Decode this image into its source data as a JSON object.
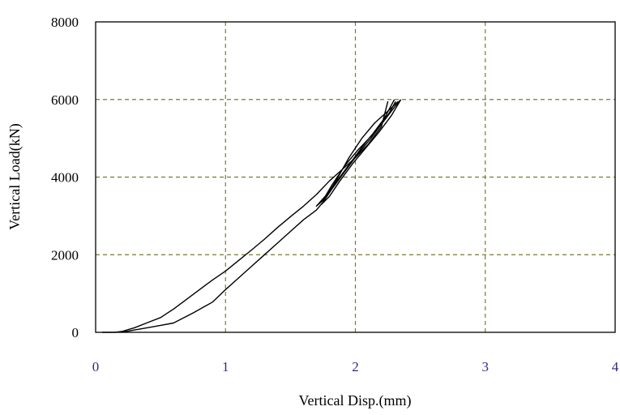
{
  "chart_data": {
    "type": "line",
    "title": "",
    "xlabel": "Vertical Disp.(mm)",
    "ylabel": "Vertical Load(kN)",
    "xlim": [
      0,
      4
    ],
    "ylim": [
      0,
      8000
    ],
    "x_ticks": [
      0,
      1,
      2,
      3,
      4
    ],
    "y_ticks": [
      0,
      2000,
      4000,
      6000,
      8000
    ],
    "x_tick_labels": [
      "0",
      "1",
      "2",
      "3",
      "4"
    ],
    "y_tick_labels": [
      "0",
      "2000",
      "4000",
      "6000",
      "8000"
    ],
    "grid": true,
    "grid_style": "dashed",
    "legend": "none",
    "colors": {
      "curve": "#000000",
      "grid": "#7a7a2e",
      "x_tick_text": "#2d2d80",
      "frame": "#000000"
    },
    "series": [
      {
        "values_xy": [
          [
            0.05,
            0
          ],
          [
            0.15,
            0
          ],
          [
            0.2,
            20
          ],
          [
            0.3,
            120
          ],
          [
            0.4,
            250
          ],
          [
            0.5,
            380
          ],
          [
            0.6,
            600
          ],
          [
            0.7,
            850
          ],
          [
            0.8,
            1100
          ],
          [
            0.9,
            1350
          ],
          [
            1.0,
            1580
          ],
          [
            1.1,
            1850
          ],
          [
            1.2,
            2120
          ],
          [
            1.3,
            2400
          ],
          [
            1.4,
            2700
          ],
          [
            1.5,
            2980
          ],
          [
            1.6,
            3250
          ],
          [
            1.7,
            3550
          ],
          [
            1.8,
            3900
          ],
          [
            1.9,
            4200
          ],
          [
            2.0,
            4500
          ],
          [
            2.1,
            4850
          ],
          [
            2.2,
            5300
          ],
          [
            2.25,
            5950
          ]
        ]
      },
      {
        "values_xy": [
          [
            0.2,
            0
          ],
          [
            0.3,
            60
          ],
          [
            0.4,
            120
          ],
          [
            0.5,
            180
          ],
          [
            0.6,
            240
          ],
          [
            0.75,
            500
          ],
          [
            0.9,
            780
          ],
          [
            1.0,
            1100
          ],
          [
            1.1,
            1400
          ],
          [
            1.2,
            1700
          ],
          [
            1.3,
            2000
          ],
          [
            1.4,
            2300
          ],
          [
            1.5,
            2600
          ],
          [
            1.6,
            2900
          ],
          [
            1.7,
            3150
          ],
          [
            1.75,
            3350
          ],
          [
            1.85,
            3900
          ],
          [
            1.95,
            4500
          ],
          [
            2.05,
            5000
          ],
          [
            2.15,
            5400
          ],
          [
            2.25,
            5700
          ],
          [
            2.33,
            5950
          ]
        ]
      },
      {
        "values_xy": [
          [
            2.3,
            6000
          ],
          [
            2.22,
            5500
          ],
          [
            2.12,
            5050
          ],
          [
            2.02,
            4700
          ],
          [
            1.92,
            4300
          ],
          [
            1.82,
            3800
          ],
          [
            1.75,
            3400
          ],
          [
            1.7,
            3250
          ],
          [
            1.78,
            3550
          ],
          [
            1.88,
            4000
          ],
          [
            1.98,
            4450
          ],
          [
            2.08,
            4900
          ],
          [
            2.18,
            5300
          ],
          [
            2.26,
            5650
          ],
          [
            2.31,
            5950
          ]
        ]
      },
      {
        "values_xy": [
          [
            2.35,
            6000
          ],
          [
            2.28,
            5600
          ],
          [
            2.18,
            5150
          ],
          [
            2.08,
            4750
          ],
          [
            1.98,
            4350
          ],
          [
            1.88,
            3900
          ],
          [
            1.8,
            3500
          ],
          [
            1.74,
            3300
          ],
          [
            1.82,
            3700
          ],
          [
            1.92,
            4150
          ],
          [
            2.02,
            4600
          ],
          [
            2.12,
            5000
          ],
          [
            2.22,
            5450
          ],
          [
            2.3,
            5800
          ],
          [
            2.35,
            6000
          ]
        ]
      }
    ]
  }
}
